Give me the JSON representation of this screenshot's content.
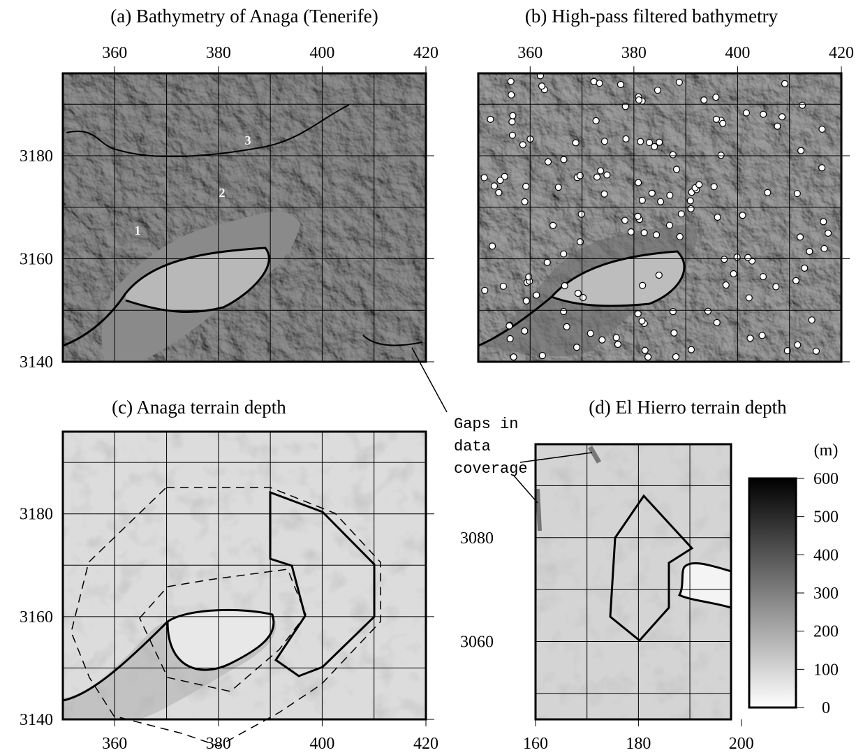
{
  "panels": [
    {
      "title": "(a) Bathymetry of Anaga (Tenerife)",
      "xlim": [
        350,
        420
      ],
      "ylim": [
        3140,
        3196
      ],
      "xticks": [
        360,
        380,
        400,
        420
      ],
      "yticks": [
        3140,
        3160,
        3180
      ],
      "x_axis": "top",
      "contour_labels": [
        "1",
        "2",
        "3"
      ]
    },
    {
      "title": "(b) High-pass filtered bathymetry",
      "xlim": [
        350,
        420
      ],
      "ylim": [
        3140,
        3196
      ],
      "xticks": [
        360,
        380,
        400,
        420
      ],
      "x_axis": "top"
    },
    {
      "title": "(c) Anaga terrain depth",
      "xlim": [
        350,
        420
      ],
      "ylim": [
        3140,
        3196
      ],
      "xticks": [
        360,
        380,
        400,
        420
      ],
      "yticks": [
        3140,
        3160,
        3180
      ],
      "x_axis": "bottom"
    },
    {
      "title": "(d) El Hierro terrain depth",
      "xlim": [
        160,
        198
      ],
      "ylim": [
        3045,
        3098
      ],
      "xticks": [
        160,
        180,
        200
      ],
      "yticks": [
        3060,
        3080
      ],
      "x_axis": "bottom"
    }
  ],
  "colorbar": {
    "unit": "(m)",
    "lim": [
      0,
      600
    ],
    "ticks": [
      0,
      100,
      200,
      300,
      400,
      500,
      600
    ]
  },
  "annotation": {
    "lines": [
      "Gaps in",
      "data",
      "coverage"
    ]
  }
}
